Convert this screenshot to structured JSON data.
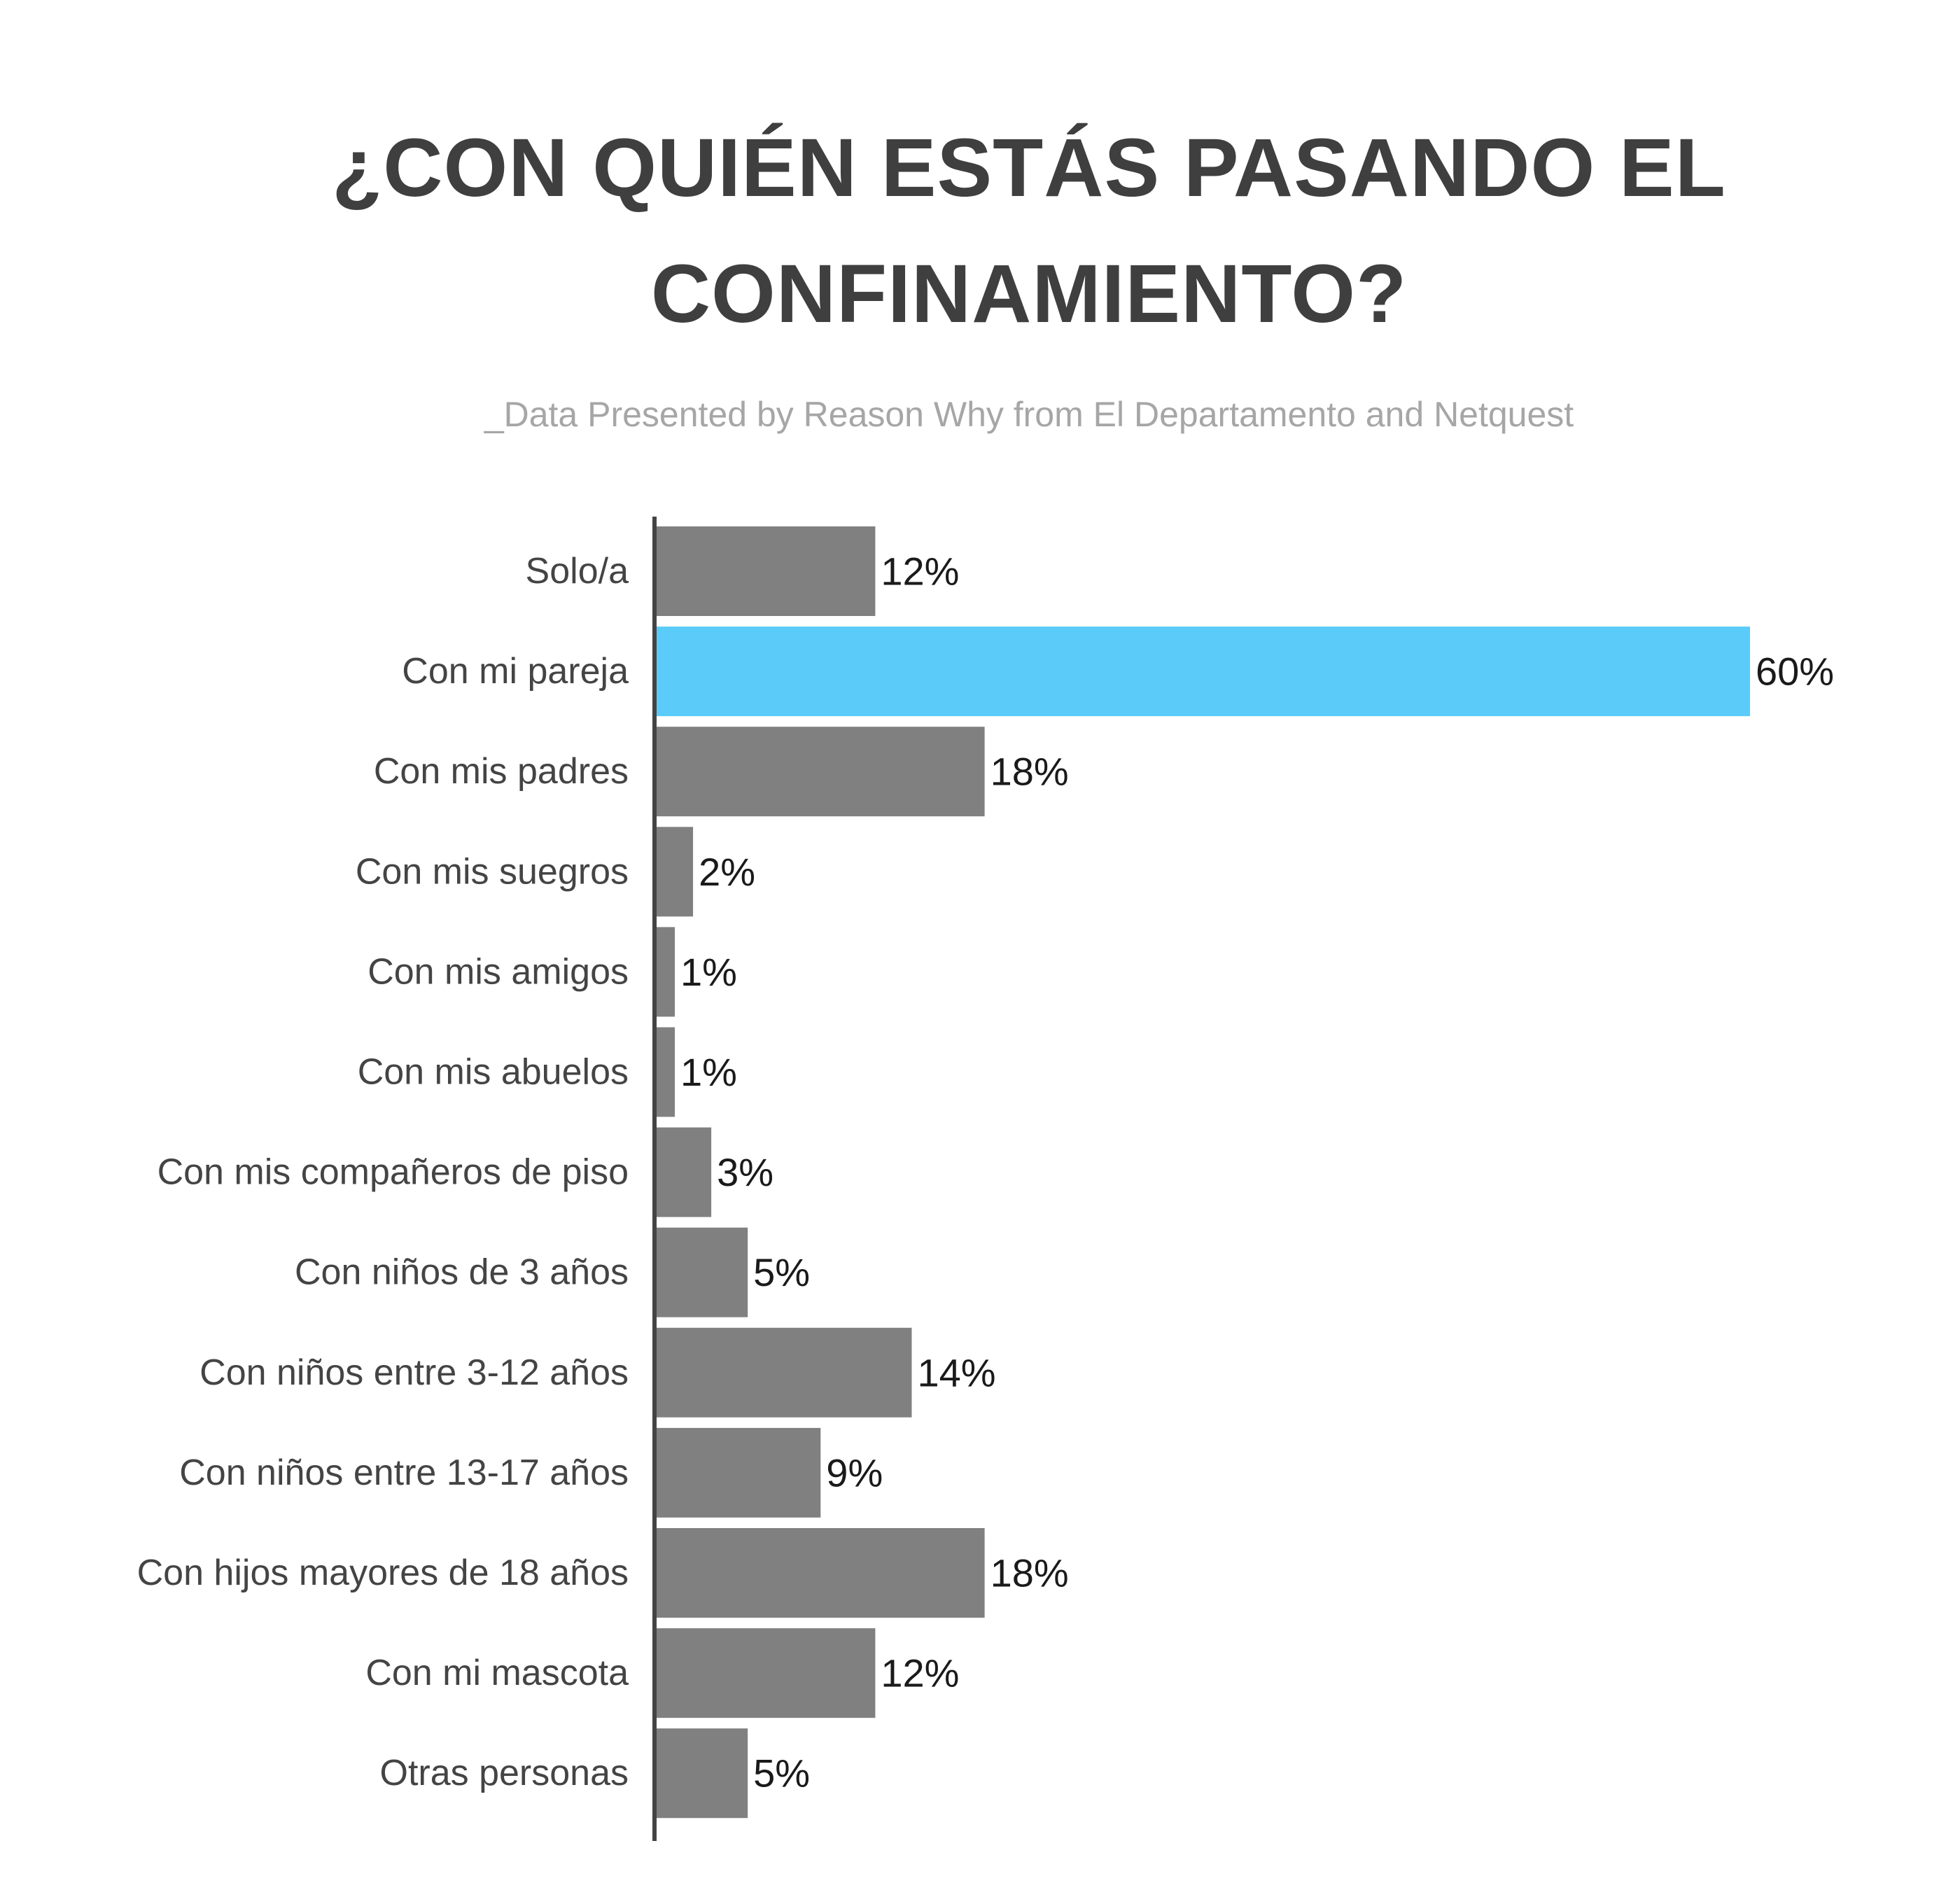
{
  "title_line1": "¿CON QUIÉN ESTÁS PASANDO EL",
  "title_line2": "CONFINAMIENTO?",
  "subtitle": "_Data Presented by Reason Why from El Departamento and Netquest",
  "colors": {
    "default_bar": "#808080",
    "highlight_bar": "#5bcbfa",
    "axis": "#444444"
  },
  "chart_data": {
    "type": "bar",
    "orientation": "horizontal",
    "title": "¿CON QUIÉN ESTÁS PASANDO EL CONFINAMIENTO?",
    "categories": [
      "Solo/a",
      "Con mi pareja",
      "Con mis padres",
      "Con mis suegros",
      "Con mis amigos",
      "Con mis abuelos",
      "Con mis compañeros de piso",
      "Con niños de 3 años",
      "Con niños entre 3-12 años",
      "Con niños entre 13-17 años",
      "Con hijos mayores de 18 años",
      "Con mi mascota",
      "Otras personas"
    ],
    "values": [
      12,
      60,
      18,
      2,
      1,
      1,
      3,
      5,
      14,
      9,
      18,
      12,
      5
    ],
    "value_labels": [
      "12%",
      "60%",
      "18%",
      "2%",
      "1%",
      "1%",
      "3%",
      "5%",
      "14%",
      "9%",
      "18%",
      "12%",
      "5%"
    ],
    "highlight_index": 1,
    "xlim": [
      0,
      60
    ],
    "grid": false,
    "legend": "none"
  }
}
